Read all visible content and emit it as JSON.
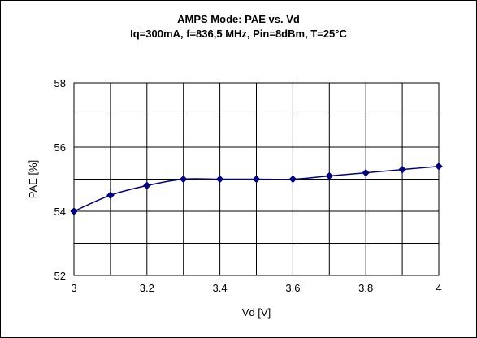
{
  "chart_data": {
    "type": "line",
    "title": "AMPS Mode: PAE vs. Vd",
    "subtitle": "Iq=300mA, f=836,5 MHz, Pin=8dBm, T=25°C",
    "xlabel": "Vd [V]",
    "ylabel": "PAE [%]",
    "xlim": [
      3,
      4
    ],
    "ylim": [
      52,
      58
    ],
    "xticks": [
      "3",
      "3.2",
      "3.4",
      "3.6",
      "3.8",
      "4"
    ],
    "yticks": [
      "52",
      "54",
      "56",
      "58"
    ],
    "grid": true,
    "series": [
      {
        "x": [
          3.0,
          3.1,
          3.2,
          3.3,
          3.4,
          3.5,
          3.6,
          3.7,
          3.8,
          3.9,
          4.0
        ],
        "y": [
          54.0,
          54.5,
          54.8,
          55.0,
          55.0,
          55.0,
          55.0,
          55.1,
          55.2,
          55.3,
          55.4
        ],
        "color": "#000080",
        "marker": "diamond"
      }
    ]
  }
}
